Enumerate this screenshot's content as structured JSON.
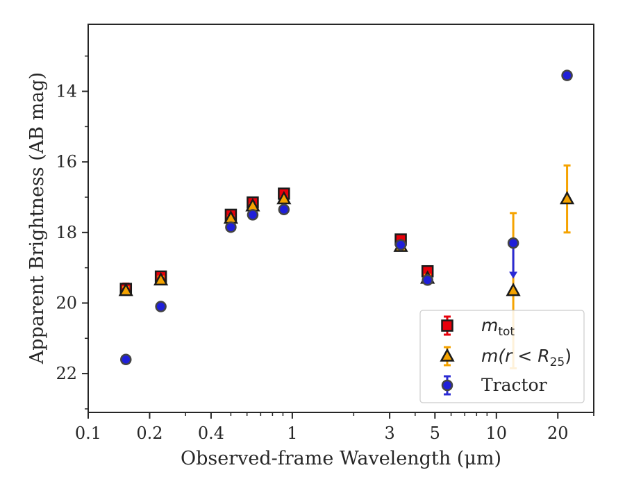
{
  "chart_data": {
    "type": "scatter",
    "xlabel": "Observed-frame Wavelength (μm)",
    "ylabel": "Apparent Brightness (AB mag)",
    "xscale": "log",
    "xlim": [
      0.1,
      30
    ],
    "ylim": [
      23.1,
      12.1
    ],
    "y_inverted": true,
    "x_ticks": [
      {
        "value": 0.1,
        "label": "0.1"
      },
      {
        "value": 0.2,
        "label": "0.2"
      },
      {
        "value": 0.4,
        "label": "0.4"
      },
      {
        "value": 1,
        "label": "1"
      },
      {
        "value": 3,
        "label": "3"
      },
      {
        "value": 5,
        "label": "5"
      },
      {
        "value": 10,
        "label": "10"
      },
      {
        "value": 20,
        "label": "20"
      }
    ],
    "y_ticks": [
      {
        "value": 14,
        "label": "14"
      },
      {
        "value": 16,
        "label": "16"
      },
      {
        "value": 18,
        "label": "18"
      },
      {
        "value": 20,
        "label": "20"
      },
      {
        "value": 22,
        "label": "22"
      }
    ],
    "grid": false,
    "legend_position": "lower-right",
    "series": [
      {
        "key": "mtot",
        "legend_main": "m",
        "legend_sub": "tot",
        "legend_after": "",
        "marker": "square",
        "color": "#e8000b",
        "errcolor": "#e8000b",
        "points": [
          {
            "x": 0.153,
            "y": 19.6,
            "err": 0.15
          },
          {
            "x": 0.227,
            "y": 19.25,
            "err": 0.1
          },
          {
            "x": 0.5,
            "y": 17.5,
            "err": 0.05
          },
          {
            "x": 0.64,
            "y": 17.15,
            "err": 0.05
          },
          {
            "x": 0.91,
            "y": 16.9,
            "err": 0.05
          },
          {
            "x": 3.4,
            "y": 18.2,
            "err": 0.08
          },
          {
            "x": 4.6,
            "y": 19.1,
            "err": 0.1
          }
        ]
      },
      {
        "key": "mr25",
        "legend_main": "m(r < R",
        "legend_sub": "25",
        "legend_after": ")",
        "marker": "triangle",
        "color": "#f5a300",
        "errcolor": "#f5a300",
        "points": [
          {
            "x": 0.153,
            "y": 19.65,
            "err": 0.1
          },
          {
            "x": 0.227,
            "y": 19.35,
            "err": 0.1
          },
          {
            "x": 0.5,
            "y": 17.6,
            "err": 0.05
          },
          {
            "x": 0.64,
            "y": 17.25,
            "err": 0.05
          },
          {
            "x": 0.91,
            "y": 17.05,
            "err": 0.05
          },
          {
            "x": 3.4,
            "y": 18.4,
            "err": 0.08
          },
          {
            "x": 4.6,
            "y": 19.3,
            "err": 0.1
          },
          {
            "x": 12.1,
            "y": 19.65,
            "err": 2.2
          },
          {
            "x": 22.2,
            "y": 17.05,
            "err": 0.95
          }
        ]
      },
      {
        "key": "tractor",
        "legend_main": "Tractor",
        "legend_sub": "",
        "legend_after": "",
        "marker": "circle",
        "color": "#1f1fd9",
        "errcolor": "#2a2ad4",
        "points": [
          {
            "x": 0.153,
            "y": 21.6,
            "err": 0.05
          },
          {
            "x": 0.227,
            "y": 20.1,
            "err": 0.05
          },
          {
            "x": 0.5,
            "y": 17.85,
            "err": 0.03
          },
          {
            "x": 0.64,
            "y": 17.5,
            "err": 0.03
          },
          {
            "x": 0.91,
            "y": 17.35,
            "err": 0.03
          },
          {
            "x": 3.4,
            "y": 18.35,
            "err": 0.03
          },
          {
            "x": 4.6,
            "y": 19.35,
            "err": 0.03
          },
          {
            "x": 12.1,
            "y": 18.3,
            "err": 0.05,
            "upper_limit_to": 19.25
          },
          {
            "x": 22.2,
            "y": 13.55,
            "err": 0.03
          }
        ]
      }
    ]
  }
}
